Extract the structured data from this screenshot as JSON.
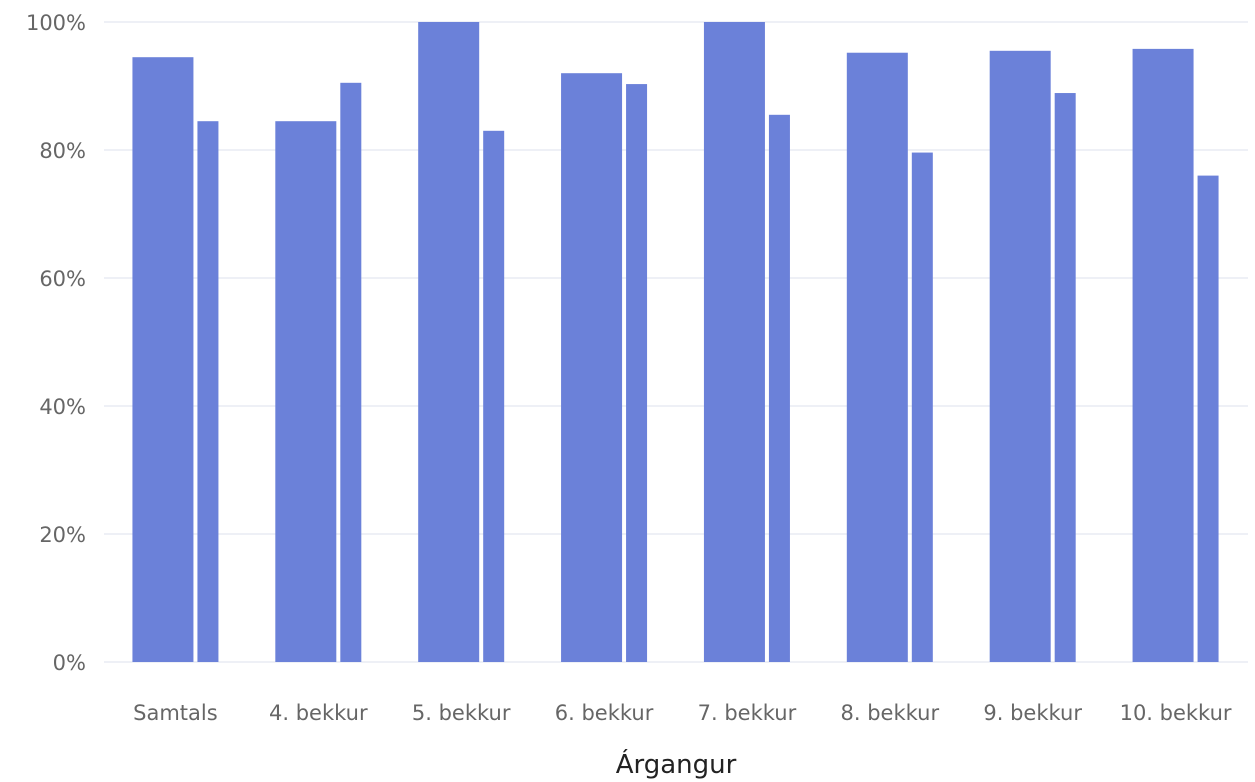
{
  "chart_data": {
    "type": "bar",
    "categories": [
      "Samtals",
      "4. bekkur",
      "5. bekkur",
      "6. bekkur",
      "7. bekkur",
      "8. bekkur",
      "9. bekkur",
      "10. bekkur"
    ],
    "series": [
      {
        "values": [
          94.5,
          84.5,
          100,
          92,
          100,
          95.2,
          95.5,
          95.8
        ]
      },
      {
        "values": [
          84.5,
          90.5,
          83,
          90.3,
          85.5,
          79.6,
          88.9,
          76
        ]
      }
    ],
    "bar_color": "#6b81d9",
    "xlabel": "Árgangur",
    "ylabel": "",
    "ylim": [
      0,
      100
    ],
    "yticks": [
      "0%",
      "20%",
      "40%",
      "60%",
      "80%",
      "100%"
    ],
    "ytick_values": [
      0,
      20,
      40,
      60,
      80,
      100
    ],
    "grid": true,
    "legend": "none"
  }
}
